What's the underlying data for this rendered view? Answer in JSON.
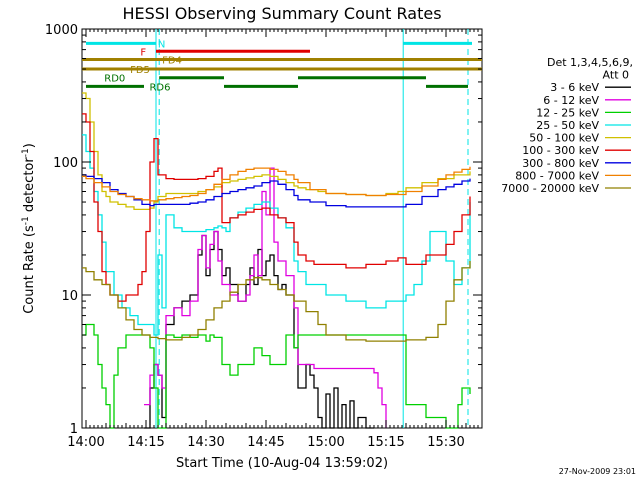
{
  "chart_data": {
    "type": "line",
    "title": "HESSI Observing Summary Count Rates",
    "xlabel": "Start Time (10-Aug-04 13:59:02)",
    "ylabel_main": "Count Rate (s",
    "ylabel_sup1": "-1",
    "ylabel_mid": " detector",
    "ylabel_sup2": "-1",
    "ylabel_end": ")",
    "footer": "27-Nov-2009 23:01",
    "x_unit": "minutes since 14:00 UT",
    "xlim": [
      -1,
      99
    ],
    "ylim": [
      1,
      1000
    ],
    "ylog": true,
    "x_ticks": [
      {
        "value": 0,
        "label": "14:00"
      },
      {
        "value": 15,
        "label": "14:15"
      },
      {
        "value": 30,
        "label": "14:30"
      },
      {
        "value": 45,
        "label": "14:45"
      },
      {
        "value": 60,
        "label": "15:00"
      },
      {
        "value": 75,
        "label": "15:15"
      },
      {
        "value": 90,
        "label": "15:30"
      }
    ],
    "y_ticks": [
      {
        "value": 1,
        "label": "1"
      },
      {
        "value": 10,
        "label": "10"
      },
      {
        "value": 100,
        "label": "100"
      },
      {
        "value": 1000,
        "label": "1000"
      }
    ],
    "legend_title_1": "Det 1,3,4,5,6,9,",
    "legend_title_2": "Att 0",
    "vlines": [
      {
        "x": 17.5,
        "style": "solid",
        "color": "#00e5e5"
      },
      {
        "x": 18.3,
        "style": "dashed",
        "color": "#00e5e5"
      },
      {
        "x": 79.3,
        "style": "solid",
        "color": "#00e5e5"
      },
      {
        "x": 95.5,
        "style": "dashed",
        "color": "#00e5e5"
      }
    ],
    "flags": [
      {
        "label": "N",
        "color": "#00e5e5",
        "y": 780,
        "segments": [
          [
            0,
            17.5
          ],
          [
            79.3,
            96.5
          ]
        ]
      },
      {
        "label": "F",
        "color": "#e00000",
        "y": 680,
        "segments": [
          [
            17.5,
            56
          ]
        ]
      },
      {
        "label": "FD4",
        "color": "#a08000",
        "y": 590,
        "segments": [
          [
            -1,
            99
          ]
        ]
      },
      {
        "label": "FD5",
        "color": "#a08000",
        "y": 500,
        "segments": [
          [
            -1,
            99
          ]
        ]
      },
      {
        "label": "RD0",
        "color": "#007000",
        "y": 430,
        "segments": [
          [
            18.3,
            34.5
          ],
          [
            53,
            85
          ]
        ]
      },
      {
        "label": "RD6",
        "color": "#007000",
        "y": 370,
        "segments": [
          [
            0,
            14.5
          ],
          [
            34.5,
            53
          ],
          [
            85,
            95.5
          ]
        ]
      }
    ],
    "series": [
      {
        "name": "3 - 6 keV",
        "color": "#000000",
        "x": [
          14.5,
          16,
          17,
          18,
          19,
          20,
          22,
          24,
          26,
          28,
          29,
          30,
          31,
          32,
          33,
          34,
          35,
          36,
          38,
          40,
          41,
          42,
          43,
          44,
          45,
          46,
          47,
          48,
          49,
          50,
          52,
          53,
          55,
          56,
          57,
          58,
          59,
          60,
          61,
          62,
          63,
          64,
          65,
          66,
          67,
          68,
          70,
          72
        ],
        "y": [
          1,
          2,
          3,
          2.5,
          1.2,
          6,
          8,
          9,
          10,
          20,
          28,
          14,
          22,
          30,
          22,
          14,
          16,
          12,
          9,
          12,
          16,
          12,
          22,
          14,
          18,
          20,
          14,
          11,
          12,
          10,
          4,
          2,
          3,
          2.5,
          2,
          1.2,
          1,
          1.8,
          1,
          2,
          1,
          1.5,
          1,
          1.6,
          1,
          1.2,
          1,
          1
        ]
      },
      {
        "name": "6 - 12 keV",
        "color": "#e000e0",
        "x": [
          14.5,
          16,
          17,
          18,
          19,
          20,
          22,
          24,
          26,
          28,
          29,
          30,
          31,
          32,
          33,
          34,
          36,
          38,
          40,
          41,
          42,
          43,
          44,
          45,
          46,
          47,
          48,
          50,
          52,
          53,
          55,
          57,
          60,
          65,
          70,
          72,
          73,
          74,
          75
        ],
        "y": [
          1.5,
          2.5,
          3,
          2.5,
          2,
          7,
          8,
          7,
          9,
          22,
          28,
          16,
          24,
          30,
          18,
          12,
          10,
          9,
          10,
          14,
          20,
          14,
          60,
          40,
          90,
          25,
          18,
          14,
          8,
          3,
          3,
          2.8,
          2.8,
          2.8,
          2.8,
          2.6,
          2,
          1.5,
          1
        ]
      },
      {
        "name": "12 - 25 keV",
        "color": "#00d000",
        "x": [
          -1,
          0,
          2,
          3,
          4,
          5,
          6,
          7,
          8,
          10,
          12,
          14,
          15,
          16,
          17,
          18,
          20,
          22,
          24,
          26,
          28,
          30,
          31,
          32,
          34,
          36,
          38,
          40,
          42,
          44,
          46,
          48,
          50,
          52,
          53,
          56,
          60,
          65,
          70,
          75,
          79,
          80,
          85,
          90,
          92,
          93,
          94,
          95,
          96
        ],
        "y": [
          5,
          6,
          5,
          3,
          2,
          1.5,
          1,
          2.5,
          4,
          5,
          5,
          5,
          5,
          4,
          2,
          1,
          5,
          4.8,
          5,
          4.8,
          5,
          4.5,
          5,
          4.8,
          3,
          2.5,
          3,
          3,
          4,
          3.5,
          3,
          3,
          5,
          4,
          5,
          5,
          5,
          5,
          5,
          5,
          5,
          1.5,
          1.2,
          1,
          1,
          1.5,
          2,
          2,
          1.8
        ]
      },
      {
        "name": "25 - 50 keV",
        "color": "#00e5e5",
        "x": [
          -1,
          0,
          1,
          2,
          3,
          4,
          5,
          7,
          9,
          11,
          13,
          15,
          17,
          18,
          19,
          20,
          22,
          24,
          26,
          28,
          30,
          32,
          33,
          34,
          35,
          36,
          38,
          40,
          42,
          44,
          46,
          48,
          50,
          52,
          53,
          55,
          60,
          65,
          70,
          75,
          78,
          80,
          82,
          84,
          86,
          88,
          90,
          92,
          94,
          96
        ],
        "y": [
          160,
          120,
          90,
          60,
          40,
          25,
          15,
          10,
          8,
          7,
          6,
          6,
          5,
          20,
          8,
          40,
          32,
          30,
          30,
          30,
          31,
          32,
          33,
          32,
          30,
          38,
          42,
          45,
          48,
          50,
          45,
          38,
          32,
          18,
          15,
          12,
          10,
          9,
          8,
          9,
          9,
          10,
          12,
          18,
          30,
          30,
          18,
          12,
          16,
          50
        ]
      },
      {
        "name": "50 - 100 keV",
        "color": "#d0c000",
        "x": [
          -1,
          0,
          1,
          2,
          3,
          4,
          5,
          6,
          8,
          10,
          12,
          14,
          16,
          17,
          18,
          20,
          22,
          24,
          26,
          28,
          30,
          32,
          34,
          36,
          38,
          40,
          42,
          44,
          46,
          48,
          50,
          52,
          53,
          55,
          58,
          60,
          65,
          70,
          75,
          78,
          80,
          84,
          88,
          92,
          96
        ],
        "y": [
          330,
          300,
          200,
          120,
          80,
          60,
          55,
          50,
          48,
          46,
          44,
          44,
          45,
          50,
          55,
          58,
          58,
          58,
          58,
          60,
          62,
          65,
          70,
          72,
          74,
          76,
          78,
          80,
          78,
          74,
          70,
          66,
          64,
          62,
          60,
          58,
          57,
          56,
          58,
          60,
          64,
          70,
          75,
          80,
          85
        ]
      },
      {
        "name": "100 - 300 keV",
        "color": "#e00000",
        "x": [
          -1,
          0,
          1,
          2,
          3,
          4,
          5,
          6,
          8,
          10,
          12,
          13,
          14,
          15,
          16,
          17,
          18,
          20,
          22,
          24,
          26,
          28,
          30,
          32,
          33,
          34,
          36,
          38,
          40,
          42,
          44,
          46,
          48,
          50,
          52,
          53,
          55,
          57,
          60,
          65,
          70,
          75,
          78,
          80,
          85,
          90,
          92,
          94,
          96
        ],
        "y": [
          230,
          200,
          120,
          50,
          30,
          15,
          12,
          10,
          9,
          10,
          10,
          12,
          15,
          30,
          100,
          150,
          80,
          75,
          74,
          74,
          74,
          75,
          78,
          85,
          90,
          35,
          38,
          40,
          42,
          44,
          45,
          40,
          38,
          35,
          25,
          20,
          18,
          17,
          17,
          16,
          17,
          18,
          19,
          17,
          20,
          24,
          30,
          40,
          55
        ]
      },
      {
        "name": "300 - 800 keV",
        "color": "#0000e0",
        "x": [
          -1,
          0,
          2,
          4,
          6,
          8,
          10,
          12,
          14,
          15,
          16,
          17,
          18,
          20,
          22,
          24,
          26,
          28,
          30,
          32,
          34,
          36,
          38,
          40,
          42,
          44,
          46,
          48,
          50,
          52,
          53,
          56,
          60,
          65,
          70,
          75,
          80,
          84,
          88,
          90,
          92,
          94,
          96
        ],
        "y": [
          80,
          78,
          75,
          70,
          62,
          58,
          55,
          52,
          48,
          48,
          47,
          48,
          48,
          48,
          48,
          48,
          49,
          50,
          52,
          55,
          58,
          60,
          62,
          64,
          66,
          70,
          72,
          68,
          62,
          56,
          52,
          50,
          47,
          46,
          46,
          46,
          48,
          55,
          62,
          65,
          68,
          72,
          75
        ]
      },
      {
        "name": "800 - 7000 keV",
        "color": "#f08000",
        "x": [
          -1,
          0,
          2,
          4,
          6,
          8,
          10,
          12,
          14,
          16,
          18,
          20,
          22,
          24,
          26,
          28,
          30,
          32,
          34,
          36,
          38,
          40,
          42,
          44,
          46,
          48,
          50,
          52,
          53,
          56,
          60,
          65,
          70,
          75,
          80,
          84,
          88,
          90,
          92,
          94,
          96
        ],
        "y": [
          78,
          75,
          70,
          65,
          60,
          57,
          55,
          53,
          52,
          51,
          52,
          53,
          54,
          55,
          56,
          58,
          62,
          68,
          74,
          80,
          85,
          88,
          90,
          90,
          88,
          85,
          80,
          74,
          70,
          62,
          58,
          57,
          56,
          57,
          60,
          66,
          74,
          80,
          84,
          88,
          92
        ]
      },
      {
        "name": "7000 - 20000 keV",
        "color": "#908000",
        "x": [
          -1,
          0,
          2,
          4,
          6,
          8,
          10,
          12,
          14,
          16,
          18,
          20,
          22,
          24,
          26,
          28,
          30,
          32,
          34,
          36,
          38,
          40,
          42,
          44,
          46,
          48,
          50,
          52,
          55,
          58,
          60,
          65,
          70,
          75,
          80,
          85,
          88,
          90,
          92,
          94,
          96
        ],
        "y": [
          16,
          15,
          13,
          12,
          10,
          8,
          6.5,
          5.5,
          5,
          4.8,
          4.7,
          4.6,
          4.6,
          4.8,
          5,
          5.5,
          6.5,
          8,
          9,
          10.5,
          12,
          13,
          13.5,
          13,
          12,
          11,
          10,
          9,
          7.5,
          6,
          5,
          4.6,
          4.5,
          4.5,
          4.6,
          4.8,
          6,
          9,
          13,
          16,
          18
        ]
      }
    ]
  }
}
